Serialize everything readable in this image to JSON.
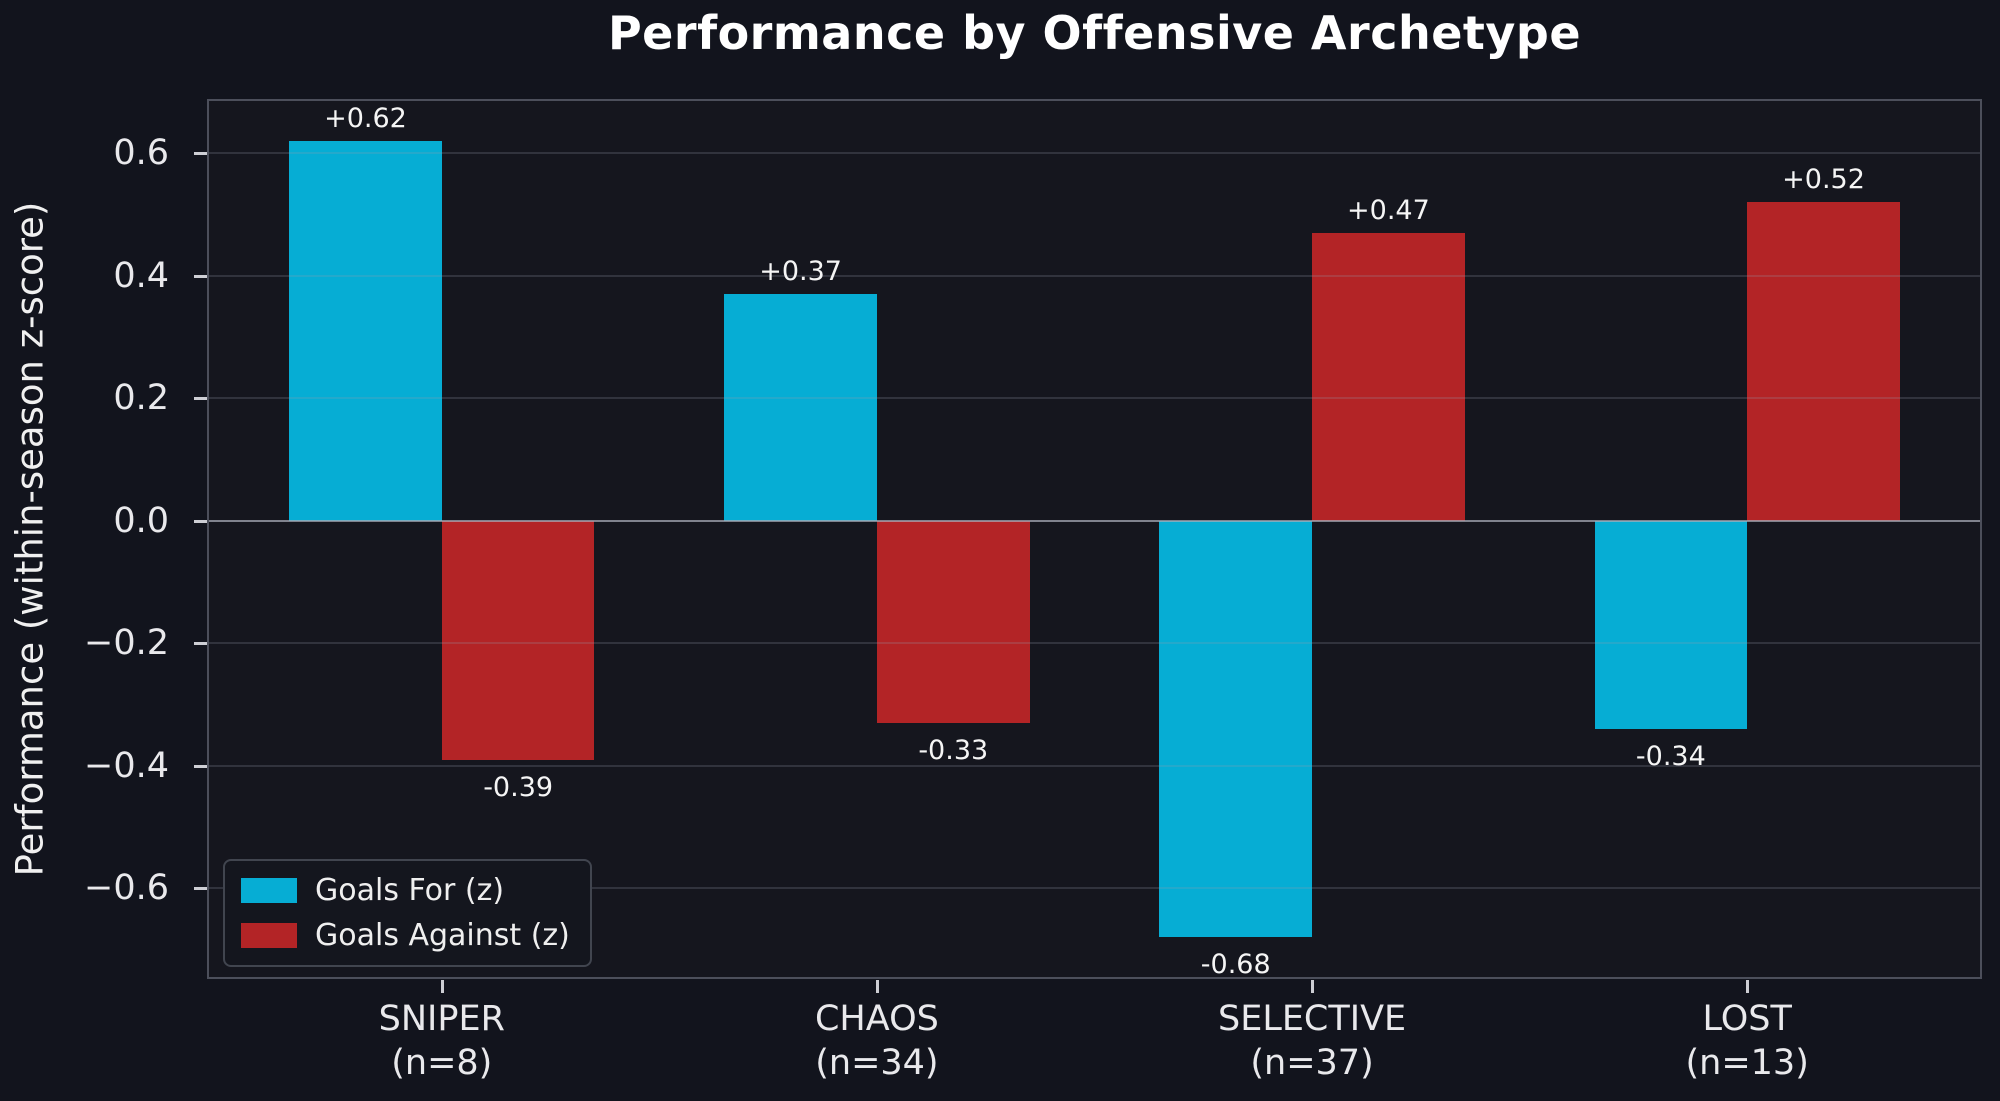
{
  "chart_data": {
    "type": "bar",
    "title": "Performance by Offensive Archetype",
    "xlabel": "",
    "ylabel": "Performance (within-season z-score)",
    "categories": [
      "SNIPER",
      "CHAOS",
      "SELECTIVE",
      "LOST"
    ],
    "category_counts": [
      "(n=8)",
      "(n=34)",
      "(n=37)",
      "(n=13)"
    ],
    "series": [
      {
        "name": "Goals For (z)",
        "color": "#06add4",
        "values": [
          0.62,
          0.37,
          -0.68,
          -0.34
        ],
        "labels": [
          "+0.62",
          "+0.37",
          "-0.68",
          "-0.34"
        ]
      },
      {
        "name": "Goals Against (z)",
        "color": "#b32426",
        "values": [
          -0.39,
          -0.33,
          0.47,
          0.52
        ],
        "labels": [
          "-0.39",
          "-0.33",
          "+0.47",
          "+0.52"
        ]
      }
    ],
    "ylim": [
      -0.745,
      0.685
    ],
    "ytick_values": [
      0.6,
      0.4,
      0.2,
      0.0,
      -0.2,
      -0.4,
      -0.6
    ],
    "ytick_labels": [
      "0.6",
      "0.4",
      "0.2",
      "0.0",
      "−0.2",
      "−0.4",
      "−0.6"
    ],
    "grid": "horizontal",
    "zero_line": true,
    "legend_position": "lower left",
    "colors": {
      "figure_bg": "#12141d",
      "axes_bg": "#15161e",
      "spine": "#4c4f5b",
      "tick_mark": "#cdced4",
      "tick_text": "#e9e9ec",
      "title_text": "#ffffff",
      "value_label_text": "#f5f5f5",
      "goals_for": "#06add4",
      "goals_against": "#b32426"
    }
  }
}
